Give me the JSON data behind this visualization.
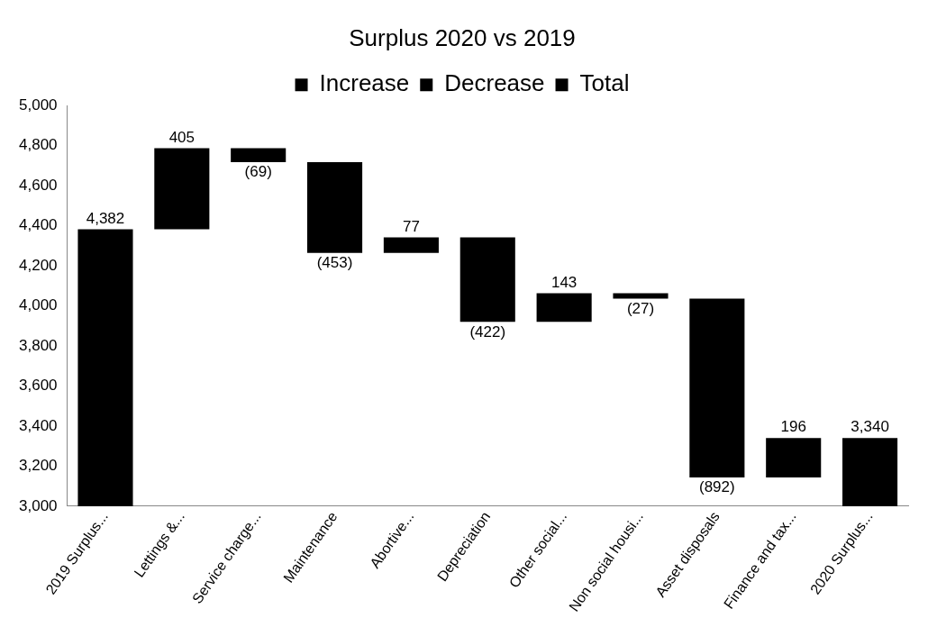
{
  "chart_data": {
    "type": "bar",
    "title": "Surplus 2020 vs 2019",
    "categories": [
      "2019 Surplus...",
      "Lettings &...",
      "Service charge...",
      "Maintenance",
      "Abortive...",
      "Depreciation",
      "Other social...",
      "Non social housi...",
      "Asset disposals",
      "Finance and tax...",
      "2020 Surplus..."
    ],
    "series": [
      {
        "name": "Increase",
        "color": "#000000",
        "values": [
          null,
          405,
          null,
          null,
          77,
          null,
          143,
          null,
          null,
          196,
          null
        ],
        "base": [
          null,
          4382,
          null,
          null,
          4265,
          null,
          3920,
          null,
          null,
          3144,
          null
        ],
        "value_labels": [
          null,
          "405",
          null,
          null,
          "77",
          null,
          "143",
          null,
          null,
          "196",
          null
        ]
      },
      {
        "name": "Decrease",
        "color": "#000000",
        "values": [
          null,
          null,
          -69,
          -453,
          null,
          -422,
          null,
          -27,
          -892,
          null,
          null
        ],
        "base": [
          null,
          null,
          4787,
          4718,
          null,
          4342,
          null,
          4063,
          4036,
          null,
          null
        ],
        "value_labels": [
          null,
          null,
          "(69)",
          "(453)",
          null,
          "(422)",
          null,
          "(27)",
          "(892)",
          null,
          null
        ]
      },
      {
        "name": "Total",
        "color": "#000000",
        "values": [
          4382,
          null,
          null,
          null,
          null,
          null,
          null,
          null,
          null,
          null,
          3340
        ],
        "base": [
          0,
          null,
          null,
          null,
          null,
          null,
          null,
          null,
          null,
          null,
          0
        ],
        "value_labels": [
          "4,382",
          null,
          null,
          null,
          null,
          null,
          null,
          null,
          null,
          null,
          "3,340"
        ]
      }
    ],
    "ylim": [
      3000,
      5000
    ],
    "yticks": [
      {
        "value": 3000,
        "label": "3,000"
      },
      {
        "value": 3200,
        "label": "3,200"
      },
      {
        "value": 3400,
        "label": "3,400"
      },
      {
        "value": 3600,
        "label": "3,600"
      },
      {
        "value": 3800,
        "label": "3,800"
      },
      {
        "value": 4000,
        "label": "4,000"
      },
      {
        "value": 4200,
        "label": "4,200"
      },
      {
        "value": 4400,
        "label": "4,400"
      },
      {
        "value": 4600,
        "label": "4,600"
      },
      {
        "value": 4800,
        "label": "4,800"
      },
      {
        "value": 5000,
        "label": "5,000"
      }
    ],
    "grid": false,
    "legend": "top"
  }
}
